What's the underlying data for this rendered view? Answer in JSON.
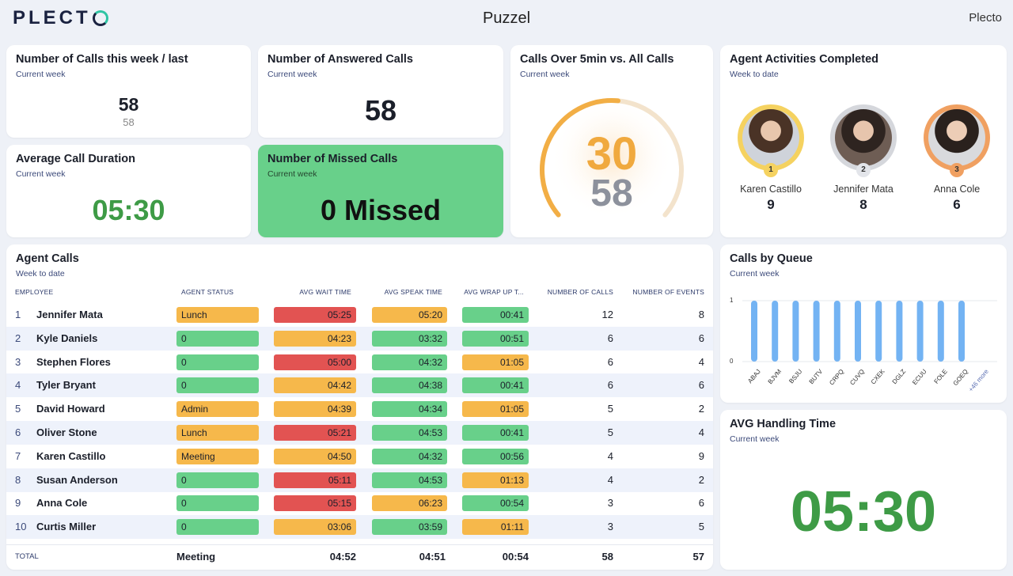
{
  "header": {
    "logo": "PLECT",
    "title": "Puzzel",
    "brand": "Plecto"
  },
  "colors": {
    "green": "#68d08a",
    "orange": "#f6b84b",
    "red": "#e25352",
    "textgreen": "#3e9b46",
    "bar": "#73b3f3"
  },
  "widgets": {
    "calls_week": {
      "title": "Number of Calls this week / last",
      "sub": "Current week",
      "value": "58",
      "prev": "58"
    },
    "answered": {
      "title": "Number of Answered Calls",
      "sub": "Current week",
      "value": "58"
    },
    "over5": {
      "title": "Calls Over 5min vs. All Calls",
      "sub": "Current week",
      "value": "30",
      "total": "58",
      "fraction": 0.52
    },
    "activities": {
      "title": "Agent Activities Completed",
      "sub": "Week to date",
      "leaders": [
        {
          "rank": "1",
          "name": "Karen Castillo",
          "value": "9"
        },
        {
          "rank": "2",
          "name": "Jennifer Mata",
          "value": "8"
        },
        {
          "rank": "3",
          "name": "Anna Cole",
          "value": "6"
        }
      ]
    },
    "avg_duration": {
      "title": "Average Call Duration",
      "sub": "Current week",
      "value": "05:30"
    },
    "missed": {
      "title": "Number of Missed Calls",
      "sub": "Current week",
      "value": "0 Missed"
    },
    "agent_calls": {
      "title": "Agent Calls",
      "sub": "Week to date",
      "columns": [
        "EMPLOYEE",
        "AGENT STATUS",
        "AVG WAIT TIME",
        "AVG SPEAK TIME",
        "AVG WRAP UP T...",
        "NUMBER OF CALLS",
        "NUMBER OF EVENTS"
      ],
      "rows": [
        {
          "rank": "1",
          "name": "Jennifer Mata",
          "status": "Lunch",
          "status_c": "orange",
          "wait": "05:25",
          "wait_c": "red",
          "speak": "05:20",
          "speak_c": "orange",
          "wrap": "00:41",
          "wrap_c": "green",
          "calls": "12",
          "events": "8"
        },
        {
          "rank": "2",
          "name": "Kyle Daniels",
          "status": "0",
          "status_c": "green",
          "wait": "04:23",
          "wait_c": "orange",
          "speak": "03:32",
          "speak_c": "green",
          "wrap": "00:51",
          "wrap_c": "green",
          "calls": "6",
          "events": "6"
        },
        {
          "rank": "3",
          "name": "Stephen Flores",
          "status": "0",
          "status_c": "green",
          "wait": "05:00",
          "wait_c": "red",
          "speak": "04:32",
          "speak_c": "green",
          "wrap": "01:05",
          "wrap_c": "orange",
          "calls": "6",
          "events": "4"
        },
        {
          "rank": "4",
          "name": "Tyler Bryant",
          "status": "0",
          "status_c": "green",
          "wait": "04:42",
          "wait_c": "orange",
          "speak": "04:38",
          "speak_c": "green",
          "wrap": "00:41",
          "wrap_c": "green",
          "calls": "6",
          "events": "6"
        },
        {
          "rank": "5",
          "name": "David Howard",
          "status": "Admin",
          "status_c": "orange",
          "wait": "04:39",
          "wait_c": "orange",
          "speak": "04:34",
          "speak_c": "green",
          "wrap": "01:05",
          "wrap_c": "orange",
          "calls": "5",
          "events": "2"
        },
        {
          "rank": "6",
          "name": "Oliver Stone",
          "status": "Lunch",
          "status_c": "orange",
          "wait": "05:21",
          "wait_c": "red",
          "speak": "04:53",
          "speak_c": "green",
          "wrap": "00:41",
          "wrap_c": "green",
          "calls": "5",
          "events": "4"
        },
        {
          "rank": "7",
          "name": "Karen Castillo",
          "status": "Meeting",
          "status_c": "orange",
          "wait": "04:50",
          "wait_c": "orange",
          "speak": "04:32",
          "speak_c": "green",
          "wrap": "00:56",
          "wrap_c": "green",
          "calls": "4",
          "events": "9"
        },
        {
          "rank": "8",
          "name": "Susan Anderson",
          "status": "0",
          "status_c": "green",
          "wait": "05:11",
          "wait_c": "red",
          "speak": "04:53",
          "speak_c": "green",
          "wrap": "01:13",
          "wrap_c": "orange",
          "calls": "4",
          "events": "2"
        },
        {
          "rank": "9",
          "name": "Anna Cole",
          "status": "0",
          "status_c": "green",
          "wait": "05:15",
          "wait_c": "red",
          "speak": "06:23",
          "speak_c": "orange",
          "wrap": "00:54",
          "wrap_c": "green",
          "calls": "3",
          "events": "6"
        },
        {
          "rank": "10",
          "name": "Curtis Miller",
          "status": "0",
          "status_c": "green",
          "wait": "03:06",
          "wait_c": "orange",
          "speak": "03:59",
          "speak_c": "green",
          "wrap": "01:11",
          "wrap_c": "orange",
          "calls": "3",
          "events": "5"
        }
      ],
      "total": {
        "label": "TOTAL",
        "status": "Meeting",
        "wait": "04:52",
        "speak": "04:51",
        "wrap": "00:54",
        "calls": "58",
        "events": "57"
      }
    },
    "queue": {
      "title": "Calls by Queue",
      "sub": "Current week",
      "more_label": "+46 more"
    },
    "handling": {
      "title": "AVG Handling Time",
      "sub": "Current week",
      "value": "05:30"
    }
  },
  "chart_data": {
    "type": "bar",
    "categories": [
      "ABAJ",
      "BJVM",
      "BSJU",
      "BUTV",
      "CRPQ",
      "CUVQ",
      "CXEK",
      "DGLZ",
      "ECUU",
      "FOLE",
      "GOEQ"
    ],
    "values": [
      1,
      1,
      1,
      1,
      1,
      1,
      1,
      1,
      1,
      1,
      1
    ],
    "ylim": [
      0,
      1
    ],
    "yticks": [
      "0",
      "1"
    ],
    "grid": true
  }
}
